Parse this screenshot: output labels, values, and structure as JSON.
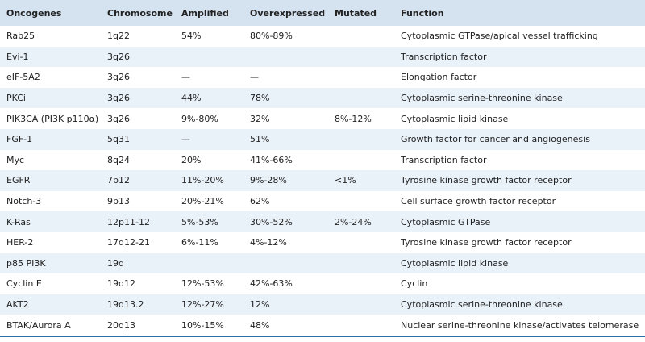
{
  "table": {
    "header": [
      "Oncogenes",
      "Chromosome",
      "Amplified",
      "Overexpressed",
      "Mutated",
      "Function"
    ],
    "rows": [
      [
        "Rab25",
        "1q22",
        "54%",
        "80%-89%",
        null,
        "Cytoplasmic GTPase/apical vessel trafficking"
      ],
      [
        "Evi-1",
        "3q26",
        null,
        null,
        null,
        "Transcription factor"
      ],
      [
        "eIF-5A2",
        "3q26",
        "—",
        "—",
        null,
        "Elongation factor"
      ],
      [
        "PKCi",
        "3q26",
        "44%",
        "78%",
        null,
        "Cytoplasmic serine-threonine kinase"
      ],
      [
        "PIK3CA (PI3K p110α)",
        "3q26",
        "9%-80%",
        "32%",
        "8%-12%",
        "Cytoplasmic lipid kinase"
      ],
      [
        "FGF-1",
        "5q31",
        "—",
        "51%",
        null,
        "Growth factor for cancer and angiogenesis"
      ],
      [
        "Myc",
        "8q24",
        "20%",
        "41%-66%",
        null,
        "Transcription factor"
      ],
      [
        "EGFR",
        "7p12",
        "11%-20%",
        "9%-28%",
        "<1%",
        "Tyrosine kinase growth factor receptor"
      ],
      [
        "Notch-3",
        "9p13",
        "20%-21%",
        "62%",
        null,
        "Cell surface growth factor receptor"
      ],
      [
        "K-Ras",
        "12p11-12",
        "5%-53%",
        "30%-52%",
        "2%-24%",
        "Cytoplasmic GTPase"
      ],
      [
        "HER-2",
        "17q12-21",
        "6%-11%",
        "4%-12%",
        null,
        "Tyrosine kinase growth factor receptor"
      ],
      [
        "p85 PI3K",
        "19q",
        null,
        null,
        null,
        "Cytoplasmic lipid kinase"
      ],
      [
        "Cyclin E",
        "19q12",
        "12%-53%",
        "42%-63%",
        null,
        "Cyclin"
      ],
      [
        "AKT2",
        "19q13.2",
        "12%-27%",
        "12%",
        null,
        "Cytoplasmic serine-threonine kinase"
      ],
      [
        "BTAK/Aurora A",
        "20q13",
        "10%-15%",
        "48%",
        null,
        "Nuclear serine-threonine kinase/activates telomerase"
      ]
    ]
  }
}
